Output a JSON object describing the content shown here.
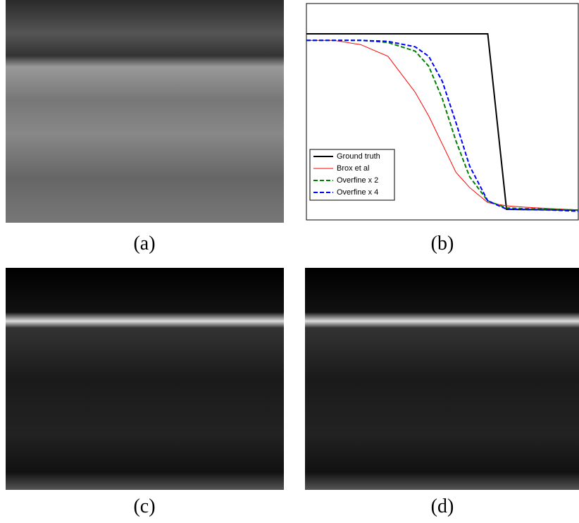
{
  "captions": [
    "(a)",
    "(b)",
    "(c)",
    "(d)"
  ],
  "chart_data": {
    "type": "line",
    "x": [
      0,
      10,
      20,
      30,
      40,
      45,
      50,
      55,
      60,
      66.7,
      73.6,
      80,
      90,
      100
    ],
    "xlim": [
      0,
      100
    ],
    "ylim": [
      0,
      1
    ],
    "legend": "lower left",
    "series": [
      {
        "name": "Ground truth",
        "color": "#000000",
        "dash": "solid",
        "width": 2,
        "values": [
          0.86,
          0.86,
          0.86,
          0.86,
          0.86,
          0.86,
          0.86,
          0.86,
          0.86,
          0.86,
          0.049,
          0.048,
          0.047,
          0.045
        ]
      },
      {
        "name": "Brox et al",
        "color": "#ff0000",
        "dash": "solid",
        "width": 1,
        "values": [
          0.83,
          0.83,
          0.81,
          0.756,
          0.59,
          0.48,
          0.35,
          0.22,
          0.15,
          0.08,
          0.065,
          0.059,
          0.052,
          0.046
        ]
      },
      {
        "name": "Overfine x 2",
        "color": "#008000",
        "dash": "dashed",
        "width": 2,
        "values": [
          0.83,
          0.83,
          0.83,
          0.82,
          0.78,
          0.71,
          0.56,
          0.365,
          0.2,
          0.088,
          0.055,
          0.052,
          0.05,
          0.045
        ]
      },
      {
        "name": "Overfine x 4",
        "color": "#0000ff",
        "dash": "dashed",
        "width": 2,
        "values": [
          0.83,
          0.83,
          0.83,
          0.825,
          0.8,
          0.756,
          0.64,
          0.45,
          0.25,
          0.088,
          0.05,
          0.048,
          0.046,
          0.04
        ]
      }
    ]
  }
}
